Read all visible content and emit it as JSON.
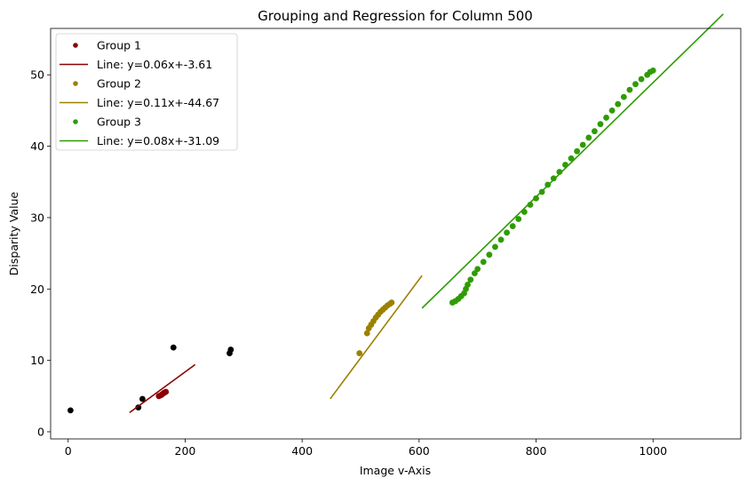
{
  "chart_data": {
    "type": "scatter",
    "title": "Grouping and Regression for Column 500",
    "xlabel": "Image v-Axis",
    "ylabel": "Disparity Value",
    "xlim": [
      -30,
      1150
    ],
    "ylim": [
      -1,
      56.5
    ],
    "xticks": [
      0,
      200,
      400,
      600,
      800,
      1000
    ],
    "yticks": [
      0,
      10,
      20,
      30,
      40,
      50
    ],
    "grid": false,
    "legend_position": "top-left",
    "unassigned_points": {
      "color": "#000000",
      "points": [
        [
          4,
          3.0
        ],
        [
          120,
          3.4
        ],
        [
          127,
          4.6
        ],
        [
          180,
          11.8
        ],
        [
          276,
          11.0
        ],
        [
          278,
          11.5
        ]
      ]
    },
    "series": [
      {
        "name": "Group 1",
        "line_label": "Line: y=0.06x+-3.61",
        "color": "#8b0000",
        "slope": 0.06,
        "intercept": -3.61,
        "line_x": [
          105,
          217
        ],
        "points": [
          [
            155,
            5.0
          ],
          [
            158,
            5.1
          ],
          [
            160,
            5.2
          ],
          [
            163,
            5.4
          ],
          [
            165,
            5.5
          ],
          [
            167,
            5.6
          ]
        ]
      },
      {
        "name": "Group 2",
        "line_label": "Line: y=0.11x+-44.67",
        "color": "#9b8100",
        "slope": 0.11,
        "intercept": -44.67,
        "line_x": [
          448,
          605
        ],
        "points": [
          [
            498,
            11.0
          ],
          [
            511,
            13.8
          ],
          [
            514,
            14.5
          ],
          [
            518,
            15.0
          ],
          [
            522,
            15.5
          ],
          [
            526,
            16.0
          ],
          [
            530,
            16.4
          ],
          [
            534,
            16.8
          ],
          [
            538,
            17.1
          ],
          [
            542,
            17.4
          ],
          [
            546,
            17.7
          ],
          [
            550,
            17.9
          ],
          [
            553,
            18.1
          ]
        ]
      },
      {
        "name": "Group 3",
        "line_label": "Line: y=0.08x+-31.09",
        "color": "#2e9c00",
        "slope": 0.08,
        "intercept": -31.09,
        "line_x": [
          605,
          1120
        ],
        "points": [
          [
            657,
            18.1
          ],
          [
            662,
            18.3
          ],
          [
            667,
            18.6
          ],
          [
            672,
            19.0
          ],
          [
            677,
            19.4
          ],
          [
            680,
            20.0
          ],
          [
            683,
            20.6
          ],
          [
            688,
            21.3
          ],
          [
            695,
            22.2
          ],
          [
            700,
            22.8
          ],
          [
            710,
            23.8
          ],
          [
            720,
            24.8
          ],
          [
            730,
            25.9
          ],
          [
            740,
            26.9
          ],
          [
            750,
            27.9
          ],
          [
            760,
            28.8
          ],
          [
            770,
            29.8
          ],
          [
            780,
            30.8
          ],
          [
            790,
            31.8
          ],
          [
            800,
            32.7
          ],
          [
            810,
            33.6
          ],
          [
            820,
            34.6
          ],
          [
            830,
            35.5
          ],
          [
            840,
            36.4
          ],
          [
            850,
            37.4
          ],
          [
            860,
            38.3
          ],
          [
            870,
            39.3
          ],
          [
            880,
            40.2
          ],
          [
            890,
            41.2
          ],
          [
            900,
            42.1
          ],
          [
            910,
            43.1
          ],
          [
            920,
            44.0
          ],
          [
            930,
            45.0
          ],
          [
            940,
            45.9
          ],
          [
            950,
            46.9
          ],
          [
            960,
            47.9
          ],
          [
            970,
            48.7
          ],
          [
            980,
            49.4
          ],
          [
            990,
            50.0
          ],
          [
            995,
            50.4
          ],
          [
            1000,
            50.6
          ]
        ]
      }
    ]
  }
}
